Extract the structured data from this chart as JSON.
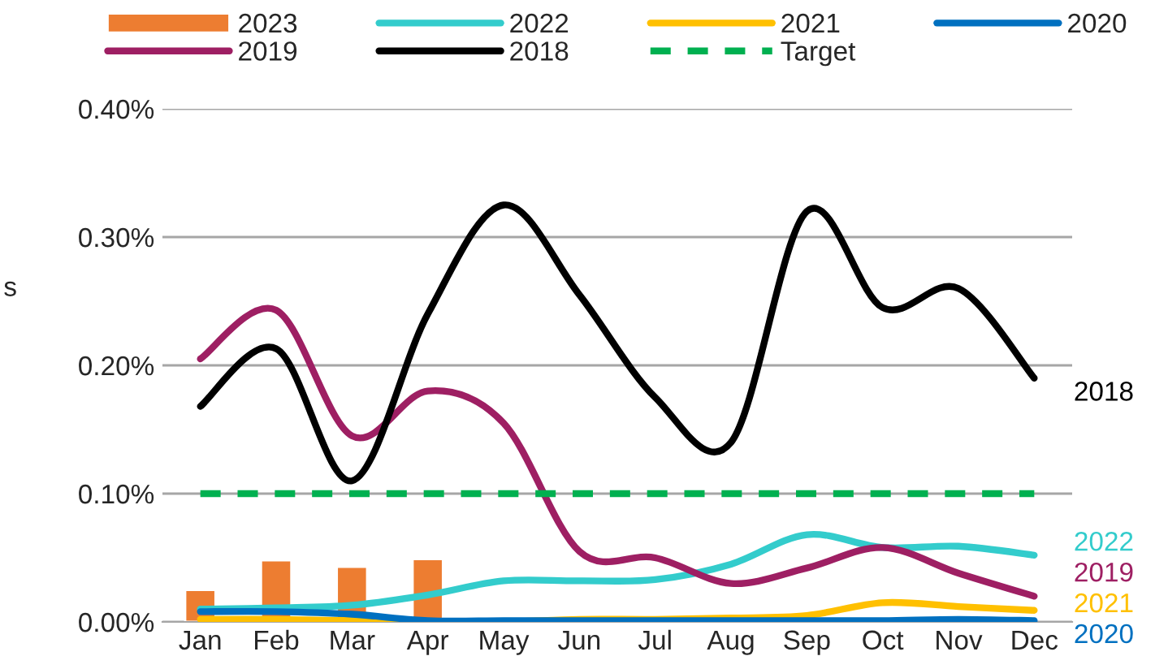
{
  "chart_data": {
    "type": "line",
    "ylabel": "s",
    "categories": [
      "Jan",
      "Feb",
      "Mar",
      "Apr",
      "May",
      "Jun",
      "Jul",
      "Aug",
      "Sep",
      "Oct",
      "Nov",
      "Dec"
    ],
    "series": [
      {
        "name": "2023",
        "type": "bar",
        "color": "#ed7d31",
        "values": [
          0.025,
          0.048,
          0.043,
          0.049,
          null,
          null,
          null,
          null,
          null,
          null,
          null,
          null
        ]
      },
      {
        "name": "2022",
        "color": "#33cccc",
        "values": [
          0.01,
          0.011,
          0.013,
          0.021,
          0.032,
          0.032,
          0.033,
          0.045,
          0.068,
          0.058,
          0.059,
          0.052
        ]
      },
      {
        "name": "2021",
        "color": "#ffc000",
        "values": [
          0.002,
          0.002,
          0.001,
          0.0,
          0.0,
          0.002,
          0.002,
          0.003,
          0.005,
          0.015,
          0.012,
          0.009
        ]
      },
      {
        "name": "2020",
        "color": "#0070c0",
        "values": [
          0.008,
          0.008,
          0.006,
          0.001,
          0.001,
          0.001,
          0.001,
          0.001,
          0.001,
          0.001,
          0.002,
          0.001
        ]
      },
      {
        "name": "2019",
        "color": "#9e1f63",
        "values": [
          0.205,
          0.243,
          0.145,
          0.18,
          0.155,
          0.055,
          0.05,
          0.03,
          0.042,
          0.058,
          0.038,
          0.02
        ]
      },
      {
        "name": "2018",
        "color": "#000000",
        "values": [
          0.168,
          0.213,
          0.11,
          0.24,
          0.325,
          0.255,
          0.175,
          0.14,
          0.32,
          0.245,
          0.26,
          0.19
        ]
      },
      {
        "name": "Target",
        "color": "#00b050",
        "line_style": "dashed",
        "values": [
          0.1,
          0.1,
          0.1,
          0.1,
          0.1,
          0.1,
          0.1,
          0.1,
          0.1,
          0.1,
          0.1,
          0.1
        ]
      }
    ],
    "ylim": [
      0,
      0.4
    ],
    "yticks": [
      {
        "value": 0,
        "label": "0.00%"
      },
      {
        "value": 0.1,
        "label": "0.10%"
      },
      {
        "value": 0.2,
        "label": "0.20%"
      },
      {
        "value": 0.3,
        "label": "0.30%"
      },
      {
        "value": 0.4,
        "label": "0.40%"
      }
    ],
    "grid": "y",
    "legend": "top"
  }
}
